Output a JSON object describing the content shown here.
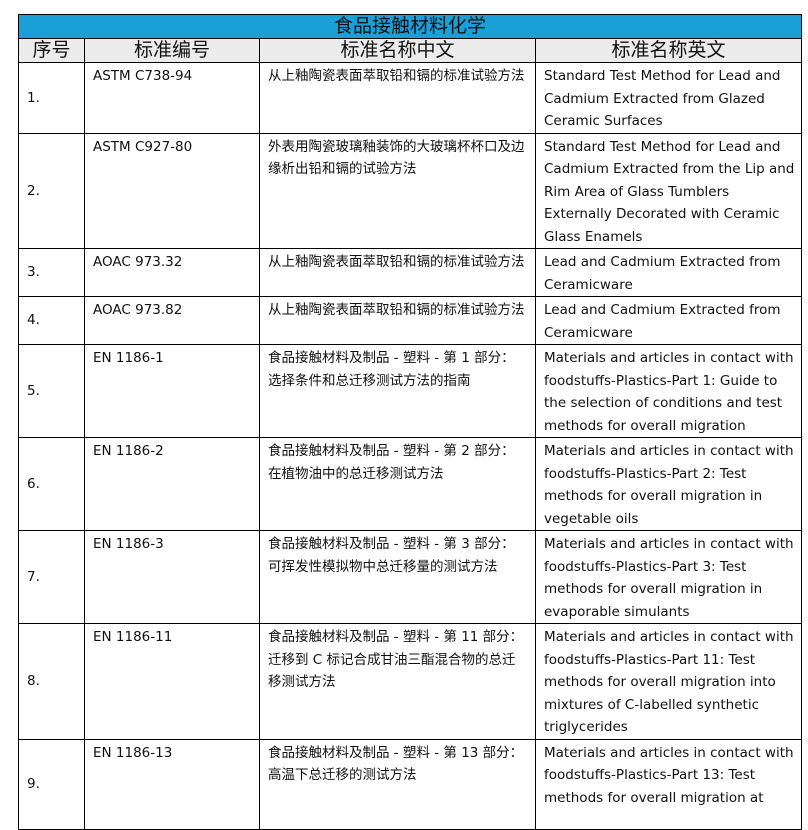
{
  "title": "食品接触材料化学",
  "headers": [
    "序号",
    "标准编号",
    "标准名称中文",
    "标准名称英文"
  ],
  "rows": [
    {
      "no": "1.",
      "code": "ASTM C738-94",
      "cn": "从上釉陶瓷表面萃取铅和镉的标准试验方法",
      "en": "Standard Test Method for Lead and Cadmium Extracted from Glazed Ceramic Surfaces"
    },
    {
      "no": "2.",
      "code": "ASTM C927-80",
      "cn": "外表用陶瓷玻璃釉装饰的大玻璃杯杯口及边缘析出铅和镉的试验方法",
      "en": "Standard Test Method for Lead and Cadmium Extracted from the Lip and Rim Area of Glass Tumblers Externally Decorated with Ceramic Glass Enamels"
    },
    {
      "no": "3.",
      "code": "AOAC 973.32",
      "cn": "从上釉陶瓷表面萃取铅和镉的标准试验方法",
      "en": "Lead and Cadmium Extracted from Ceramicware"
    },
    {
      "no": "4.",
      "code": "AOAC 973.82",
      "cn": "从上釉陶瓷表面萃取铅和镉的标准试验方法",
      "en": "Lead and Cadmium Extracted from Ceramicware"
    },
    {
      "no": "5.",
      "code": "EN 1186-1",
      "cn": "食品接触材料及制品 - 塑料 - 第 1 部分：选择条件和总迁移测试方法的指南",
      "en": "Materials and articles in contact with foodstuffs-Plastics-Part 1: Guide to the selection of conditions and test methods for overall migration"
    },
    {
      "no": "6.",
      "code": "EN 1186-2",
      "cn": "食品接触材料及制品 - 塑料 - 第 2 部分：在植物油中的总迁移测试方法",
      "en": "Materials and articles in contact with foodstuffs-Plastics-Part 2: Test methods for overall migration in vegetable oils"
    },
    {
      "no": "7.",
      "code": "EN 1186-3",
      "cn": "食品接触材料及制品 - 塑料 - 第 3 部分：可挥发性模拟物中总迁移量的测试方法",
      "en": "Materials and articles in contact with foodstuffs-Plastics-Part 3: Test methods for overall migration in evaporable simulants"
    },
    {
      "no": "8.",
      "code": "EN 1186-11",
      "cn": "食品接触材料及制品 - 塑料 - 第 11 部分：迁移到 C 标记合成甘油三酯混合物的总迁移测试方法",
      "en": "Materials and articles in contact with foodstuffs-Plastics-Part 11: Test methods for overall migration into mixtures of C-labelled synthetic triglycerides"
    },
    {
      "no": "9.",
      "code": "EN 1186-13",
      "cn": "食品接触材料及制品 - 塑料 - 第 13 部分：高温下总迁移的测试方法",
      "en": "Materials and articles in contact with foodstuffs-Plastics-Part 13: Test methods for overall migration at"
    }
  ],
  "colors": {
    "title_bg": "#1a9fd8",
    "header_bg": "#ececec"
  }
}
